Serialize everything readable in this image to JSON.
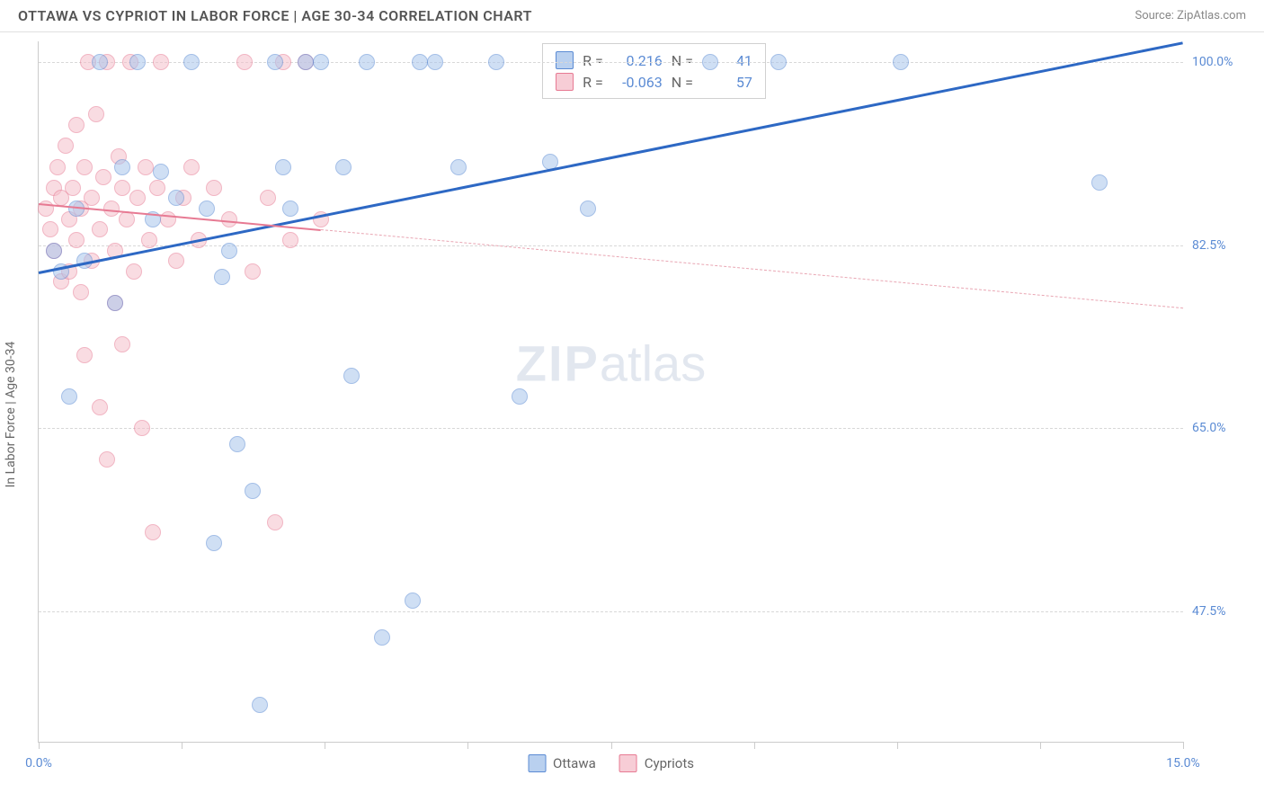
{
  "header": {
    "title": "OTTAWA VS CYPRIOT IN LABOR FORCE | AGE 30-34 CORRELATION CHART",
    "source": "Source: ZipAtlas.com"
  },
  "chart": {
    "type": "scatter",
    "ylabel": "In Labor Force | Age 30-34",
    "xlim": [
      0.0,
      15.0
    ],
    "ylim": [
      35.0,
      102.0
    ],
    "xticks": [
      0.0,
      1.875,
      3.75,
      5.625,
      7.5,
      9.375,
      11.25,
      13.125,
      15.0
    ],
    "xtick_labels": {
      "0": "0.0%",
      "15": "15.0%"
    },
    "yticks": [
      47.5,
      65.0,
      82.5,
      100.0
    ],
    "ytick_labels": [
      "47.5%",
      "65.0%",
      "82.5%",
      "100.0%"
    ],
    "grid_color": "#d8d8d8",
    "background": "#ffffff",
    "marker_radius": 9,
    "series": {
      "ottawa": {
        "label": "Ottawa",
        "color_fill": "#a9c5ec",
        "color_stroke": "#5b8bd4",
        "trend_color": "#2d68c4",
        "r": "0.216",
        "n": "41",
        "trend": {
          "x1": 0.0,
          "y1": 80.0,
          "x2": 15.0,
          "y2": 102.0
        },
        "points": [
          [
            0.2,
            82.0
          ],
          [
            0.3,
            80.0
          ],
          [
            0.4,
            68.0
          ],
          [
            0.5,
            86.0
          ],
          [
            0.6,
            81.0
          ],
          [
            0.8,
            100.0
          ],
          [
            1.0,
            77.0
          ],
          [
            1.1,
            90.0
          ],
          [
            1.3,
            100.0
          ],
          [
            1.5,
            85.0
          ],
          [
            1.6,
            89.5
          ],
          [
            1.8,
            87.0
          ],
          [
            2.0,
            100.0
          ],
          [
            2.2,
            86.0
          ],
          [
            2.3,
            54.0
          ],
          [
            2.4,
            79.5
          ],
          [
            2.5,
            82.0
          ],
          [
            2.6,
            63.5
          ],
          [
            2.8,
            59.0
          ],
          [
            2.9,
            38.5
          ],
          [
            3.1,
            100.0
          ],
          [
            3.2,
            90.0
          ],
          [
            3.3,
            86.0
          ],
          [
            3.5,
            100.0
          ],
          [
            3.7,
            100.0
          ],
          [
            4.0,
            90.0
          ],
          [
            4.1,
            70.0
          ],
          [
            4.3,
            100.0
          ],
          [
            4.5,
            45.0
          ],
          [
            4.9,
            48.5
          ],
          [
            5.0,
            100.0
          ],
          [
            5.2,
            100.0
          ],
          [
            5.5,
            90.0
          ],
          [
            6.3,
            68.0
          ],
          [
            6.7,
            90.5
          ],
          [
            8.8,
            100.0
          ],
          [
            9.7,
            100.0
          ],
          [
            11.3,
            100.0
          ],
          [
            7.2,
            86.0
          ],
          [
            13.9,
            88.5
          ],
          [
            6.0,
            100.0
          ]
        ]
      },
      "cypriots": {
        "label": "Cypriots",
        "color_fill": "#f5c0cb",
        "color_stroke": "#e77a93",
        "trend_color": "#e77a93",
        "r": "-0.063",
        "n": "57",
        "trend_solid": {
          "x1": 0.0,
          "y1": 86.5,
          "x2": 3.7,
          "y2": 84.0
        },
        "trend_dash": {
          "x1": 3.7,
          "y1": 84.0,
          "x2": 15.0,
          "y2": 76.5
        },
        "points": [
          [
            0.1,
            86.0
          ],
          [
            0.15,
            84.0
          ],
          [
            0.2,
            88.0
          ],
          [
            0.2,
            82.0
          ],
          [
            0.25,
            90.0
          ],
          [
            0.3,
            87.0
          ],
          [
            0.3,
            79.0
          ],
          [
            0.35,
            92.0
          ],
          [
            0.4,
            85.0
          ],
          [
            0.4,
            80.0
          ],
          [
            0.45,
            88.0
          ],
          [
            0.5,
            94.0
          ],
          [
            0.5,
            83.0
          ],
          [
            0.55,
            86.0
          ],
          [
            0.55,
            78.0
          ],
          [
            0.6,
            90.0
          ],
          [
            0.6,
            72.0
          ],
          [
            0.65,
            100.0
          ],
          [
            0.7,
            87.0
          ],
          [
            0.7,
            81.0
          ],
          [
            0.75,
            95.0
          ],
          [
            0.8,
            84.0
          ],
          [
            0.8,
            67.0
          ],
          [
            0.85,
            89.0
          ],
          [
            0.9,
            100.0
          ],
          [
            0.9,
            62.0
          ],
          [
            0.95,
            86.0
          ],
          [
            1.0,
            82.0
          ],
          [
            1.0,
            77.0
          ],
          [
            1.05,
            91.0
          ],
          [
            1.1,
            88.0
          ],
          [
            1.1,
            73.0
          ],
          [
            1.15,
            85.0
          ],
          [
            1.2,
            100.0
          ],
          [
            1.25,
            80.0
          ],
          [
            1.3,
            87.0
          ],
          [
            1.35,
            65.0
          ],
          [
            1.4,
            90.0
          ],
          [
            1.45,
            83.0
          ],
          [
            1.5,
            55.0
          ],
          [
            1.55,
            88.0
          ],
          [
            1.6,
            100.0
          ],
          [
            1.7,
            85.0
          ],
          [
            1.8,
            81.0
          ],
          [
            1.9,
            87.0
          ],
          [
            2.0,
            90.0
          ],
          [
            2.1,
            83.0
          ],
          [
            2.3,
            88.0
          ],
          [
            2.5,
            85.0
          ],
          [
            2.7,
            100.0
          ],
          [
            2.8,
            80.0
          ],
          [
            3.0,
            87.0
          ],
          [
            3.1,
            56.0
          ],
          [
            3.2,
            100.0
          ],
          [
            3.3,
            83.0
          ],
          [
            3.5,
            100.0
          ],
          [
            3.7,
            85.0
          ]
        ]
      }
    },
    "watermark": {
      "part1": "ZIP",
      "part2": "atlas"
    },
    "stats_labels": {
      "r": "R =",
      "n": "N ="
    }
  },
  "legend": {
    "ottawa": "Ottawa",
    "cypriots": "Cypriots"
  }
}
